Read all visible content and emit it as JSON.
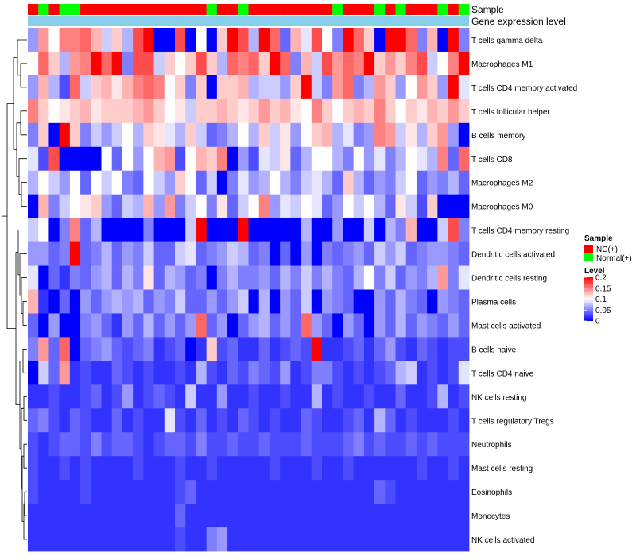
{
  "chart_data": {
    "type": "heatmap",
    "title": "",
    "column_annotations": [
      {
        "name": "Sample",
        "values": [
          "NC(+)",
          "Normal(+)",
          "NC(+)",
          "Normal(+)",
          "Normal(+)",
          "NC(+)",
          "NC(+)",
          "NC(+)",
          "NC(+)",
          "NC(+)",
          "NC(+)",
          "NC(+)",
          "NC(+)",
          "NC(+)",
          "NC(+)",
          "NC(+)",
          "NC(+)",
          "Normal(+)",
          "NC(+)",
          "NC(+)",
          "Normal(+)",
          "NC(+)",
          "NC(+)",
          "NC(+)",
          "NC(+)",
          "NC(+)",
          "NC(+)",
          "NC(+)",
          "NC(+)",
          "Normal(+)",
          "NC(+)",
          "NC(+)",
          "NC(+)",
          "Normal(+)",
          "NC(+)",
          "Normal(+)",
          "NC(+)",
          "NC(+)",
          "NC(+)",
          "Normal(+)",
          "NC(+)",
          "Normal(+)"
        ]
      },
      {
        "name": "Gene expression level",
        "values": []
      }
    ],
    "rows": [
      "T cells gamma delta",
      "Macrophages M1",
      "T cells CD4 memory activated",
      "T cells follicular helper",
      "B cells memory",
      "T cells CD8",
      "Macrophages M2",
      "Macrophages M0",
      "T cells CD4 memory resting",
      "Dendritic cells activated",
      "Dendritic cells resting",
      "Plasma cells",
      "Mast cells activated",
      "B cells naive",
      "T cells CD4 naive",
      "NK cells resting",
      "T cells regulatory  Tregs",
      "Neutrophils",
      "Mast cells resting",
      "Eosinophils",
      "Monocytes",
      "NK cells activated"
    ],
    "matrix": [
      [
        0.06,
        0.14,
        0.1,
        0.15,
        0.15,
        0.16,
        0.13,
        0.08,
        0.12,
        0.07,
        0.17,
        0.2,
        0,
        0,
        0.17,
        0,
        0.1,
        0,
        0.12,
        0.2,
        0.17,
        0.07,
        0.2,
        0.16,
        0.04,
        0.13,
        0.09,
        0.17,
        0.1,
        0.05,
        0.2,
        0.16,
        0.12,
        0,
        0.2,
        0.2,
        0.16,
        0.05,
        0.13,
        0,
        0.2,
        0.05
      ],
      [
        0.1,
        0.16,
        0.12,
        0.07,
        0.14,
        0.15,
        0.2,
        0.16,
        0.2,
        0.05,
        0.17,
        0.17,
        0.08,
        0.12,
        0.1,
        0.12,
        0.17,
        0.12,
        0.07,
        0.16,
        0.15,
        0.16,
        0.12,
        0.2,
        0.16,
        0.05,
        0.13,
        0.08,
        0.17,
        0.14,
        0.16,
        0.15,
        0.2,
        0.12,
        0.14,
        0.12,
        0.15,
        0.17,
        0.08,
        0.1,
        0.15,
        0.2
      ],
      [
        0.06,
        0.13,
        0.07,
        0.03,
        0.16,
        0.08,
        0.12,
        0.13,
        0.11,
        0.13,
        0.15,
        0.16,
        0.15,
        0.1,
        0.12,
        0.05,
        0.12,
        0,
        0.12,
        0.12,
        0.13,
        0.07,
        0.08,
        0.08,
        0.06,
        0.12,
        0.2,
        0.08,
        0.05,
        0.14,
        0.16,
        0.05,
        0.07,
        0.14,
        0.12,
        0.06,
        0.1,
        0.14,
        0.12,
        0.06,
        0.2,
        0.09
      ],
      [
        0.15,
        0.12,
        0.1,
        0.11,
        0.12,
        0.13,
        0.11,
        0.12,
        0.12,
        0.12,
        0.13,
        0.14,
        0.12,
        0.1,
        0.11,
        0.08,
        0.12,
        0.12,
        0.13,
        0.12,
        0.11,
        0.12,
        0.14,
        0.12,
        0.13,
        0.11,
        0.1,
        0.15,
        0.12,
        0.1,
        0.12,
        0.13,
        0.12,
        0.15,
        0.12,
        0.1,
        0.12,
        0.11,
        0.13,
        0.12,
        0.14,
        0.12
      ],
      [
        0.05,
        0.12,
        0,
        0.2,
        0.12,
        0.05,
        0.08,
        0.06,
        0.08,
        0.1,
        0.07,
        0.12,
        0.11,
        0.09,
        0.07,
        0.12,
        0.08,
        0.04,
        0.05,
        0.07,
        0.1,
        0.07,
        0.12,
        0.08,
        0.11,
        0.06,
        0.1,
        0.12,
        0.13,
        0.07,
        0.09,
        0.05,
        0.06,
        0.15,
        0.14,
        0.08,
        0.11,
        0.07,
        0.12,
        0.14,
        0.06,
        0
      ],
      [
        0.09,
        0.03,
        0.17,
        0,
        0,
        0,
        0,
        0.1,
        0.04,
        0.1,
        0.06,
        0.1,
        0.13,
        0.14,
        0.03,
        0.1,
        0.13,
        0.12,
        0.15,
        0,
        0.06,
        0.03,
        0.09,
        0.08,
        0.11,
        0.04,
        0.07,
        0.1,
        0.1,
        0.07,
        0.05,
        0.1,
        0.06,
        0.09,
        0.05,
        0.07,
        0.1,
        0.09,
        0.07,
        0.15,
        0.04,
        0.16
      ],
      [
        0.07,
        0.1,
        0.08,
        0.06,
        0.1,
        0.04,
        0.1,
        0.08,
        0.1,
        0.05,
        0.04,
        0.1,
        0.08,
        0.06,
        0.12,
        0.1,
        0.04,
        0.08,
        0,
        0.05,
        0.09,
        0.06,
        0.07,
        0.1,
        0.07,
        0.05,
        0.08,
        0.09,
        0.07,
        0.04,
        0.12,
        0.07,
        0.04,
        0.06,
        0.05,
        0.08,
        0.1,
        0.04,
        0.06,
        0.05,
        0.07,
        0.04
      ],
      [
        0,
        0.13,
        0.05,
        0.08,
        0.1,
        0.11,
        0.12,
        0.06,
        0.04,
        0.08,
        0.07,
        0.13,
        0.06,
        0.14,
        0.05,
        0.08,
        0.1,
        0.05,
        0.11,
        0.04,
        0.08,
        0.1,
        0.15,
        0.06,
        0.09,
        0.08,
        0.1,
        0.09,
        0.04,
        0.06,
        0.1,
        0.08,
        0.1,
        0.07,
        0.04,
        0.11,
        0.08,
        0.03,
        0.12,
        0,
        0,
        0
      ],
      [
        0.08,
        0.1,
        0,
        0.05,
        0.15,
        0.04,
        0.07,
        0,
        0,
        0,
        0,
        0.05,
        0,
        0,
        0,
        0.08,
        0.2,
        0,
        0,
        0,
        0.2,
        0,
        0,
        0,
        0,
        0,
        0.07,
        0,
        0,
        0.06,
        0,
        0,
        0.08,
        0,
        0.07,
        0.05,
        0.13,
        0,
        0,
        0.08,
        0.17,
        0.05
      ],
      [
        0.06,
        0.06,
        0.04,
        0.05,
        0.2,
        0.04,
        0.05,
        0.07,
        0.04,
        0.06,
        0.05,
        0.08,
        0.04,
        0.04,
        0.08,
        0.09,
        0.04,
        0.05,
        0.06,
        0.08,
        0.07,
        0.04,
        0.05,
        0,
        0.04,
        0,
        0.06,
        0,
        0.05,
        0.04,
        0.05,
        0.06,
        0.04,
        0.08,
        0.06,
        0.08,
        0.04,
        0.05,
        0.06,
        0.06,
        0.05,
        0.04
      ],
      [
        0.09,
        0,
        0.04,
        0.02,
        0.05,
        0.04,
        0.06,
        0.07,
        0.04,
        0.07,
        0.05,
        0.11,
        0.04,
        0.07,
        0.06,
        0.04,
        0.05,
        0,
        0.05,
        0.07,
        0.05,
        0.05,
        0.06,
        0.04,
        0.07,
        0.05,
        0.08,
        0.05,
        0.07,
        0.05,
        0.04,
        0.07,
        0.1,
        0.05,
        0.08,
        0.04,
        0.06,
        0.05,
        0.07,
        0.14,
        0.05,
        0.09
      ],
      [
        0.13,
        0.02,
        0,
        0.04,
        0,
        0.06,
        0.04,
        0.06,
        0.07,
        0.06,
        0.07,
        0.04,
        0.06,
        0.05,
        0.08,
        0.04,
        0.04,
        0.06,
        0.04,
        0.06,
        0.08,
        0,
        0.07,
        0,
        0.06,
        0.04,
        0.08,
        0,
        0.06,
        0.05,
        0.04,
        0,
        0,
        0.06,
        0.04,
        0.07,
        0.05,
        0.04,
        0,
        0.06,
        0.05,
        0.04
      ],
      [
        0.04,
        0,
        0.06,
        0,
        0,
        0.05,
        0.06,
        0.04,
        0.02,
        0.06,
        0.04,
        0.07,
        0.04,
        0.06,
        0.04,
        0.06,
        0.16,
        0.04,
        0.06,
        0,
        0.04,
        0.06,
        0.07,
        0.04,
        0.06,
        0.04,
        0.16,
        0.06,
        0.04,
        0,
        0.06,
        0.04,
        0,
        0.06,
        0.04,
        0.07,
        0.04,
        0.06,
        0.05,
        0.04,
        0.06,
        0.04
      ],
      [
        0.05,
        0.14,
        0.04,
        0.16,
        0,
        0.04,
        0.05,
        0.06,
        0.04,
        0.03,
        0.04,
        0.05,
        0.02,
        0.03,
        0.04,
        0,
        0.02,
        0.12,
        0.03,
        0.04,
        0.02,
        0.02,
        0.04,
        0.02,
        0.03,
        0.04,
        0.03,
        0.2,
        0.02,
        0.02,
        0.03,
        0.04,
        0.02,
        0.04,
        0.06,
        0.03,
        0.02,
        0.04,
        0.03,
        0.02,
        0.03,
        0.03
      ],
      [
        0,
        0.08,
        0.04,
        0.14,
        0.02,
        0.03,
        0.02,
        0.02,
        0.04,
        0.03,
        0.02,
        0.03,
        0.02,
        0.02,
        0.03,
        0.02,
        0.07,
        0.03,
        0.02,
        0.04,
        0.03,
        0.05,
        0.04,
        0.03,
        0.06,
        0.02,
        0.03,
        0.05,
        0.05,
        0.03,
        0.02,
        0.03,
        0.02,
        0.03,
        0.04,
        0.07,
        0.08,
        0.02,
        0.03,
        0.02,
        0.03,
        0.09
      ],
      [
        0.02,
        0.02,
        0.03,
        0.02,
        0.02,
        0.03,
        0.04,
        0.02,
        0.03,
        0.06,
        0.02,
        0.03,
        0.04,
        0.03,
        0.02,
        0.08,
        0.02,
        0.02,
        0.06,
        0.02,
        0.02,
        0.03,
        0.02,
        0.02,
        0.03,
        0.02,
        0.02,
        0.07,
        0.02,
        0.03,
        0.02,
        0.02,
        0.03,
        0.02,
        0.02,
        0.04,
        0.02,
        0.02,
        0.03,
        0.07,
        0.02,
        0.03
      ],
      [
        0.04,
        0.05,
        0.03,
        0.02,
        0.04,
        0.03,
        0.02,
        0.02,
        0.04,
        0.02,
        0.03,
        0.02,
        0.02,
        0.09,
        0.03,
        0.02,
        0.04,
        0.02,
        0.03,
        0.02,
        0.04,
        0.03,
        0.02,
        0.03,
        0.02,
        0.02,
        0.04,
        0.03,
        0.02,
        0.02,
        0.03,
        0.04,
        0.02,
        0.07,
        0.04,
        0.02,
        0.03,
        0.02,
        0.02,
        0.02,
        0.03,
        0.02
      ],
      [
        0.03,
        0.02,
        0.03,
        0.04,
        0.04,
        0.03,
        0.05,
        0.03,
        0.04,
        0.04,
        0.03,
        0.02,
        0.03,
        0.04,
        0.04,
        0.03,
        0.05,
        0.03,
        0.03,
        0.04,
        0.03,
        0.03,
        0.04,
        0.03,
        0.03,
        0.03,
        0.04,
        0.03,
        0.03,
        0.03,
        0.04,
        0.05,
        0.03,
        0.04,
        0.03,
        0.03,
        0.04,
        0.03,
        0.04,
        0.03,
        0.03,
        0.03
      ],
      [
        0.03,
        0.02,
        0.02,
        0.03,
        0.02,
        0.03,
        0.02,
        0.02,
        0.02,
        0.02,
        0.03,
        0.02,
        0.02,
        0.02,
        0.03,
        0.02,
        0.02,
        0.03,
        0.02,
        0.02,
        0.02,
        0.02,
        0.02,
        0.03,
        0.02,
        0.02,
        0.02,
        0.03,
        0.02,
        0.02,
        0.03,
        0.02,
        0.02,
        0.02,
        0.02,
        0.02,
        0.02,
        0.03,
        0.02,
        0.02,
        0.03,
        0.02
      ],
      [
        0.03,
        0.02,
        0.02,
        0.02,
        0.02,
        0.03,
        0.02,
        0.02,
        0.02,
        0.02,
        0.02,
        0.02,
        0.02,
        0.02,
        0.03,
        0.04,
        0.02,
        0.02,
        0.02,
        0.02,
        0.02,
        0.02,
        0.02,
        0.02,
        0.02,
        0.02,
        0.02,
        0.02,
        0.02,
        0.02,
        0.02,
        0.02,
        0.02,
        0.04,
        0.03,
        0.02,
        0.02,
        0.02,
        0.02,
        0.02,
        0.02,
        0.02
      ],
      [
        0.02,
        0.02,
        0.02,
        0.02,
        0.02,
        0.02,
        0.02,
        0.02,
        0.02,
        0.02,
        0.02,
        0.02,
        0.02,
        0.02,
        0.04,
        0.02,
        0.02,
        0.02,
        0.02,
        0.02,
        0.02,
        0.02,
        0.02,
        0.02,
        0.02,
        0.02,
        0.02,
        0.02,
        0.02,
        0.02,
        0.02,
        0.02,
        0.02,
        0.02,
        0.02,
        0.02,
        0.02,
        0.02,
        0.02,
        0.02,
        0.02,
        0.02
      ],
      [
        0.02,
        0.02,
        0.02,
        0.02,
        0.02,
        0.02,
        0.02,
        0.02,
        0.02,
        0.02,
        0.02,
        0.02,
        0.02,
        0.02,
        0.03,
        0.02,
        0.02,
        0.05,
        0.06,
        0.02,
        0.02,
        0.02,
        0.02,
        0.02,
        0.02,
        0.02,
        0.02,
        0.02,
        0.02,
        0.02,
        0.02,
        0.02,
        0.02,
        0.02,
        0.02,
        0.02,
        0.02,
        0.02,
        0.02,
        0.02,
        0.02,
        0.02
      ]
    ],
    "color_scale": {
      "domain": [
        0,
        0.1,
        0.2
      ],
      "colors": [
        "#0000ff",
        "#ffffff",
        "#ff0000"
      ]
    },
    "legend": {
      "sample_title": "Sample",
      "sample_items": [
        {
          "label": "NC(+)",
          "color": "#ff0000"
        },
        {
          "label": "Normal(+)",
          "color": "#00ff00"
        }
      ],
      "level_title": "Level",
      "level_ticks": [
        {
          "label": "0.2",
          "value": 0.2
        },
        {
          "label": "0.15",
          "value": 0.15
        },
        {
          "label": "0.1",
          "value": 0.1
        },
        {
          "label": "0.05",
          "value": 0.05
        },
        {
          "label": "0",
          "value": 0
        }
      ]
    },
    "gene_expression_bar_color": "#87ceeb",
    "xlabel": "",
    "ylabel": "",
    "grid": false,
    "legend_position": "right"
  }
}
